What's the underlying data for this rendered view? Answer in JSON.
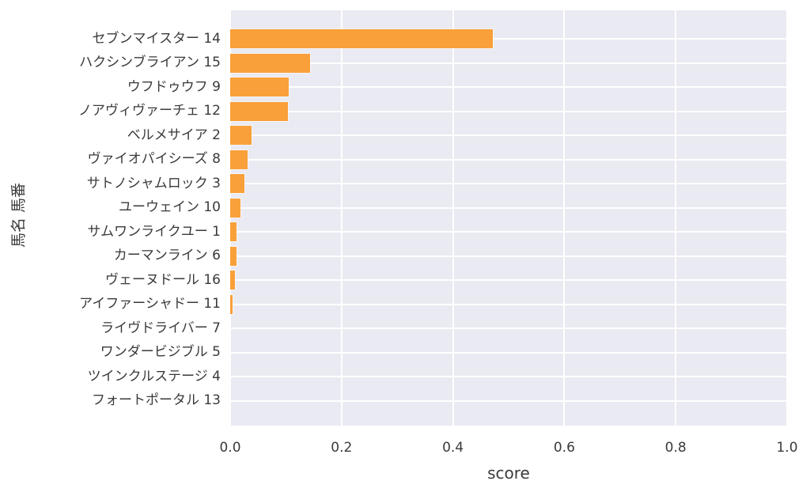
{
  "chart_data": {
    "type": "bar",
    "orientation": "horizontal",
    "title": "",
    "xlabel": "score",
    "ylabel": "馬名 馬番",
    "xlim": [
      0.0,
      1.0
    ],
    "xtick_labels": [
      "0.0",
      "0.2",
      "0.4",
      "0.6",
      "0.8",
      "1.0"
    ],
    "xtick_values": [
      0.0,
      0.2,
      0.4,
      0.6,
      0.8,
      1.0
    ],
    "grid": true,
    "legend": false,
    "categories": [
      "セブンマイスター 14",
      "ハクシンブライアン 15",
      "ウフドゥウフ 9",
      "ノアヴィヴァーチェ 12",
      "ベルメサイア 2",
      "ヴァイオパイシーズ 8",
      "サトノシャムロック 3",
      "ユーウェイン 10",
      "サムワンライクユー 1",
      "カーマンライン 6",
      "ヴェーヌドール 16",
      "アイファーシャドー 11",
      "ライヴドライバー 7",
      "ワンダービジブル 5",
      "ツインクルステージ 4",
      "フォートポータル 13"
    ],
    "values": [
      0.472,
      0.143,
      0.105,
      0.104,
      0.038,
      0.031,
      0.026,
      0.018,
      0.011,
      0.011,
      0.009,
      0.004,
      0.0,
      0.0,
      0.0,
      0.0
    ],
    "colors": {
      "bar": "#f9a03a",
      "plot_background": "#eaeaf2",
      "gridline": "#ffffff",
      "text": "#3a3a3a",
      "figure_background": "#ffffff"
    }
  }
}
